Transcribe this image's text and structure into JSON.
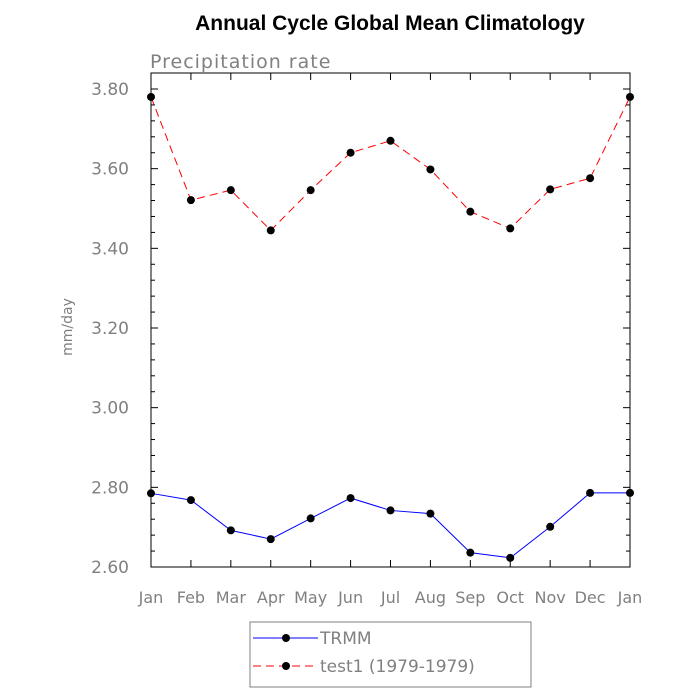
{
  "chart_data": {
    "type": "line",
    "title": "Annual Cycle Global Mean Climatology",
    "subtitle": "Precipitation rate",
    "ylabel": "mm/day",
    "xlabel": "",
    "categories": [
      "Jan",
      "Feb",
      "Mar",
      "Apr",
      "May",
      "Jun",
      "Jul",
      "Aug",
      "Sep",
      "Oct",
      "Nov",
      "Dec",
      "Jan"
    ],
    "ylim": [
      2.6,
      3.8
    ],
    "yticks": [
      "2.60",
      "2.80",
      "3.00",
      "3.20",
      "3.40",
      "3.60",
      "3.80"
    ],
    "ytick_values": [
      2.6,
      2.8,
      3.0,
      3.2,
      3.4,
      3.6,
      3.8
    ],
    "grid": false,
    "legend_position": "bottom",
    "series": [
      {
        "name": "TRMM",
        "color": "#0000ff",
        "line_style": "solid",
        "values": [
          2.785,
          2.768,
          2.692,
          2.67,
          2.722,
          2.773,
          2.742,
          2.734,
          2.636,
          2.623,
          2.701,
          2.786,
          2.786
        ]
      },
      {
        "name": "test1 (1979-1979)",
        "color": "#ff0000",
        "line_style": "dashed",
        "values": [
          3.78,
          3.521,
          3.546,
          3.445,
          3.546,
          3.64,
          3.67,
          3.598,
          3.492,
          3.45,
          3.548,
          3.576,
          3.78
        ]
      }
    ]
  }
}
